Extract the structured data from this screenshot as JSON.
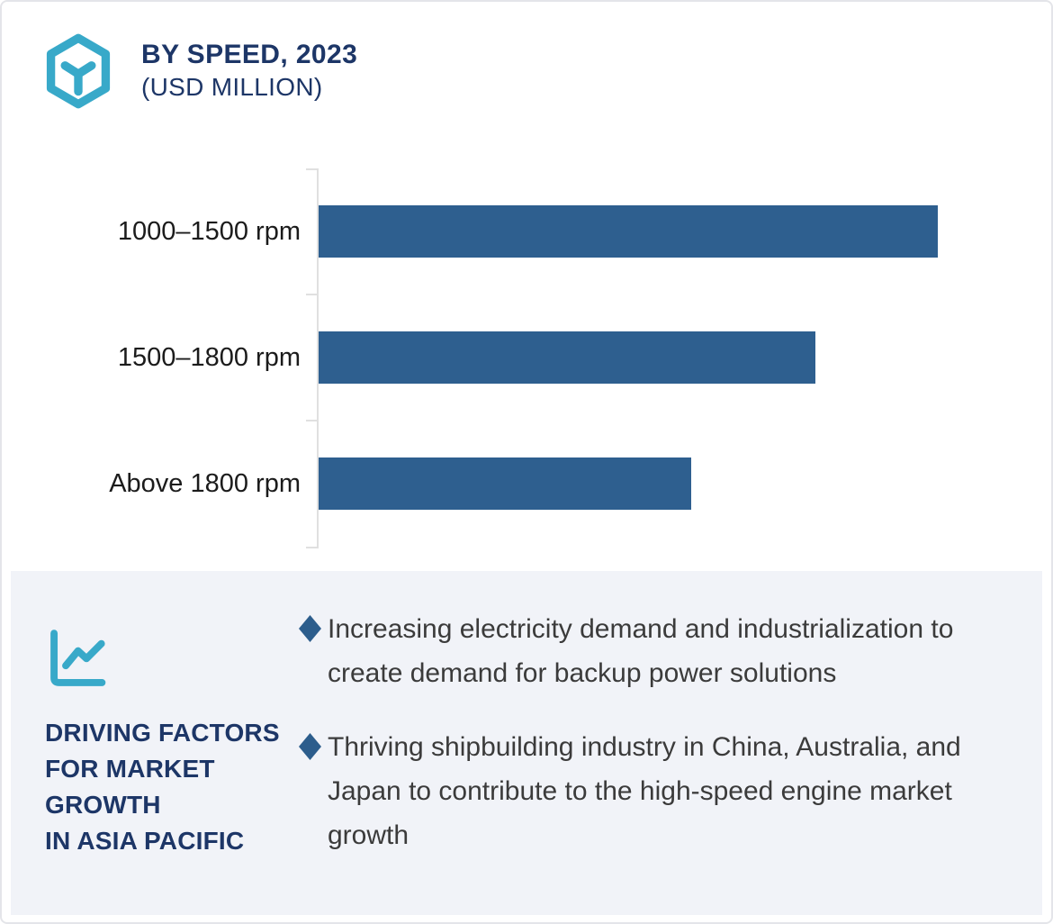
{
  "header": {
    "icon": "cube-hexagon-icon",
    "title_line1": "BY SPEED, 2023",
    "title_line2": "(USD MILLION)"
  },
  "chart_data": {
    "type": "bar",
    "orientation": "horizontal",
    "title": "BY SPEED, 2023",
    "subtitle": "(USD MILLION)",
    "unit": "USD Million",
    "categories": [
      "1000–1500 rpm",
      "1500–1800 rpm",
      "Above 1800 rpm"
    ],
    "values_pct_of_max": [
      100,
      80.3,
      60.2
    ],
    "value_labels_shown": false,
    "xlabel": "",
    "ylabel": "",
    "grid": false,
    "legend": false,
    "bar_color": "#2E5F8F",
    "axis_color": "#E0E0E0"
  },
  "panel": {
    "icon": "line-chart-icon",
    "heading_lines": [
      "DRIVING FACTORS",
      "FOR MARKET",
      "GROWTH",
      "IN ASIA PACIFIC"
    ],
    "bullets": [
      "Increasing electricity demand and industrialization to create demand for backup power solutions",
      "Thriving shipbuilding industry in China, Australia, and Japan to contribute to the high-speed engine market growth"
    ],
    "bullet_marker": "diamond",
    "bullet_color": "#2C5D8C",
    "background": "#F1F3F8"
  },
  "colors": {
    "accent_teal": "#38A9C9",
    "navy": "#1D3667",
    "bar_blue": "#2E5F8F",
    "text_dark": "#3B3B3B",
    "panel_bg": "#F1F3F8",
    "card_border": "#E4E5E9"
  }
}
